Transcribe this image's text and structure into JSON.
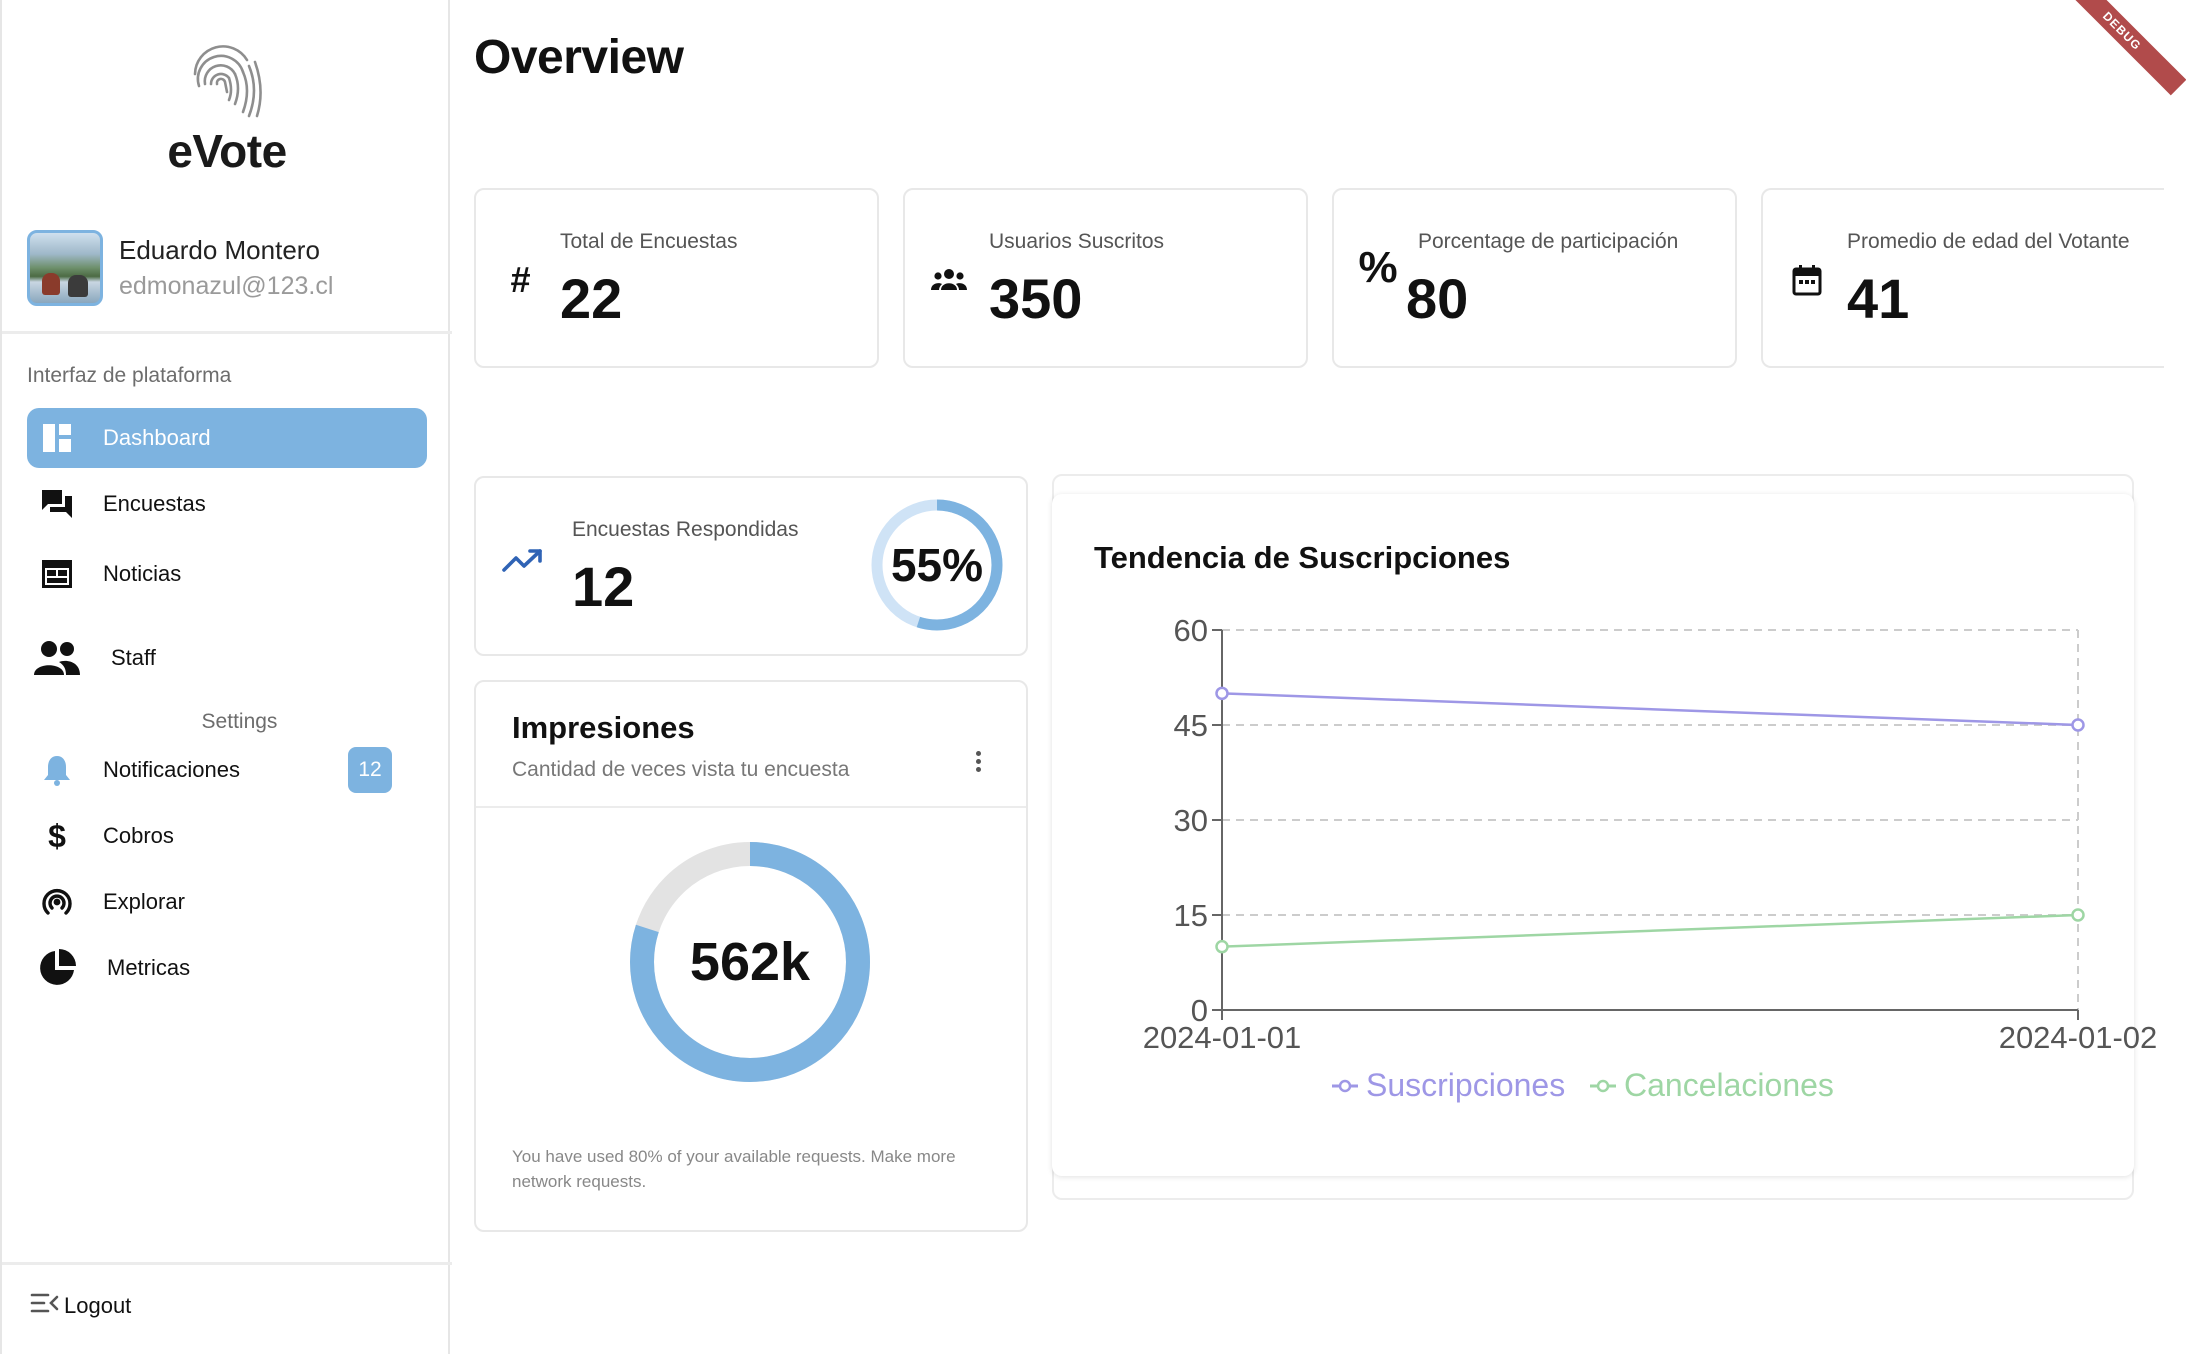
{
  "app": {
    "name": "eVote"
  },
  "user": {
    "name": "Eduardo Montero",
    "email": "edmonazul@123.cl"
  },
  "sidebar": {
    "section_label": "Interfaz de plataforma",
    "items": [
      {
        "label": "Dashboard",
        "icon": "dashboard-icon",
        "active": true
      },
      {
        "label": "Encuestas",
        "icon": "chat-icon"
      },
      {
        "label": "Noticias",
        "icon": "calendar-grid-icon"
      },
      {
        "label": "Staff",
        "icon": "people-icon"
      }
    ],
    "settings_label": "Settings",
    "settings_items": [
      {
        "label": "Notificaciones",
        "icon": "bell-icon",
        "badge": "12"
      },
      {
        "label": "Cobros",
        "icon": "dollar-icon"
      },
      {
        "label": "Explorar",
        "icon": "broadcast-icon"
      },
      {
        "label": "Metricas",
        "icon": "pie-icon"
      }
    ],
    "logout_label": "Logout"
  },
  "page": {
    "title": "Overview",
    "debug_banner": "DEBUG"
  },
  "stats": [
    {
      "label": "Total de Encuestas",
      "value": "22",
      "icon": "hash-icon"
    },
    {
      "label": "Usuarios Suscritos",
      "value": "350",
      "icon": "group-icon"
    },
    {
      "label": "Porcentage de participación",
      "value": "80",
      "icon": "percent-icon"
    },
    {
      "label": "Promedio de edad del Votante",
      "value": "41",
      "icon": "calendar-icon"
    }
  ],
  "responded": {
    "label": "Encuestas Respondidas",
    "value": "12",
    "percent_text": "55%",
    "percent": 0.55,
    "icon": "trending-up-icon"
  },
  "impressions": {
    "title": "Impresiones",
    "subtitle": "Cantidad de veces vista tu encuesta",
    "value": "562k",
    "fill_fraction": 0.8,
    "note": "You have used 80% of your available requests. Make more network requests."
  },
  "colors": {
    "accent": "#7db3e0",
    "subscriptions": "#9e97e6",
    "cancellations": "#9ed6a4",
    "track": "#e3e3e3"
  },
  "chart_data": {
    "type": "line",
    "title": "Tendencia de Suscripciones",
    "x": [
      "2024-01-01",
      "2024-01-02"
    ],
    "series": [
      {
        "name": "Suscripciones",
        "values": [
          50,
          45
        ],
        "color": "#9e97e6"
      },
      {
        "name": "Cancelaciones",
        "values": [
          10,
          15
        ],
        "color": "#9ed6a4"
      }
    ],
    "yticks": [
      0,
      15,
      30,
      45,
      60
    ],
    "ylim": [
      0,
      60
    ],
    "grid": true,
    "legend": "bottom"
  }
}
